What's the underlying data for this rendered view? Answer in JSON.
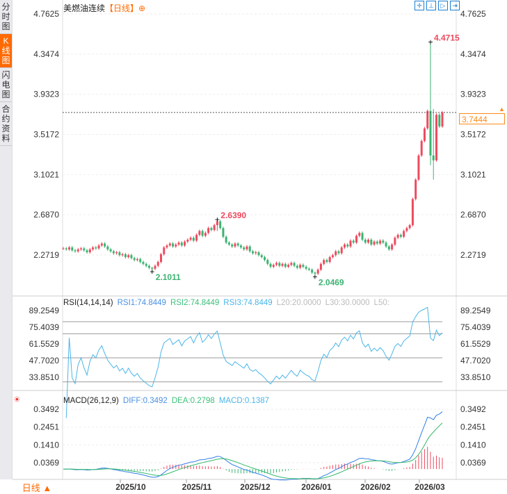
{
  "sidebar": {
    "tabs": [
      {
        "label": "分时图",
        "active": false
      },
      {
        "label": "K线图",
        "active": true
      },
      {
        "label": "闪电图",
        "active": false
      },
      {
        "label": "合约资料",
        "active": false
      }
    ]
  },
  "header": {
    "title": "美燃油连续",
    "period_tag": "【日线】",
    "tools": [
      "crosshair-icon",
      "fit-icon",
      "play-icon",
      "end-icon"
    ]
  },
  "colors": {
    "up": "#ee4a5f",
    "down": "#3cb371",
    "rsi1": "#4a90e2",
    "rsi2": "#3cc07a",
    "rsi3": "#4ab5e8",
    "diff": "#2f7fe8",
    "dea": "#2fb86a",
    "accent": "#ff6a00"
  },
  "price_axis": {
    "ticks": [
      "4.7625",
      "4.3474",
      "3.9323",
      "3.5172",
      "3.1021",
      "2.6870",
      "2.2719"
    ],
    "range": [
      2.2719,
      4.7625
    ],
    "last": "3.7444"
  },
  "annotations": {
    "high": "4.4715",
    "mid_high": "2.6390",
    "low1": "2.1011",
    "low2": "2.0469"
  },
  "chart_data": {
    "type": "candlestick",
    "closes": [
      2.34,
      2.33,
      2.35,
      2.32,
      2.31,
      2.33,
      2.34,
      2.32,
      2.3,
      2.33,
      2.35,
      2.34,
      2.37,
      2.39,
      2.36,
      2.33,
      2.31,
      2.29,
      2.3,
      2.27,
      2.28,
      2.25,
      2.27,
      2.24,
      2.22,
      2.23,
      2.2,
      2.18,
      2.16,
      2.14,
      2.13,
      2.16,
      2.2,
      2.28,
      2.35,
      2.37,
      2.39,
      2.36,
      2.38,
      2.4,
      2.37,
      2.41,
      2.43,
      2.45,
      2.42,
      2.48,
      2.52,
      2.47,
      2.5,
      2.55,
      2.53,
      2.58,
      2.62,
      2.55,
      2.46,
      2.4,
      2.38,
      2.36,
      2.39,
      2.37,
      2.35,
      2.33,
      2.36,
      2.31,
      2.29,
      2.3,
      2.27,
      2.25,
      2.22,
      2.18,
      2.15,
      2.17,
      2.19,
      2.16,
      2.18,
      2.15,
      2.17,
      2.19,
      2.16,
      2.14,
      2.17,
      2.15,
      2.13,
      2.12,
      2.09,
      2.08,
      2.12,
      2.18,
      2.22,
      2.2,
      2.25,
      2.27,
      2.31,
      2.29,
      2.35,
      2.38,
      2.36,
      2.42,
      2.4,
      2.47,
      2.5,
      2.43,
      2.4,
      2.43,
      2.38,
      2.41,
      2.39,
      2.42,
      2.4,
      2.36,
      2.33,
      2.38,
      2.45,
      2.48,
      2.46,
      2.52,
      2.55,
      2.58,
      2.85,
      3.05,
      3.3,
      3.45,
      3.58,
      3.76,
      3.3,
      3.25,
      3.72,
      3.6,
      3.7444
    ],
    "extremes": {
      "30": [
        2.15,
        2.1011
      ],
      "52": [
        2.639,
        2.52
      ],
      "85": [
        2.1,
        2.0469
      ],
      "124": [
        4.4715,
        3.2
      ],
      "125": [
        3.78,
        3.05
      ]
    },
    "x_ticks": [
      "2025/10",
      "2025/11",
      "2025/12",
      "2026/01",
      "2026/02",
      "2026/03"
    ]
  },
  "rsi": {
    "label": "RSI(14,14,14)",
    "rsi1": "RSI1:74.8449",
    "rsi2": "RSI2:74.8449",
    "rsi3": "RSI3:74.8449",
    "l20": "L20:20.0000",
    "l30": "L30:30.0000",
    "l50": "L50:",
    "ticks": [
      "89.2549",
      "75.4039",
      "61.5529",
      "47.7020",
      "33.8510"
    ]
  },
  "macd": {
    "label": "MACD(26,12,9)",
    "diff": "DIFF:0.3492",
    "dea": "DEA:0.2798",
    "macd": "MACD:0.1387",
    "ticks": [
      "0.3492",
      "0.2451",
      "0.1410",
      "0.0369"
    ]
  },
  "footer": {
    "period": "日线 ▲"
  }
}
